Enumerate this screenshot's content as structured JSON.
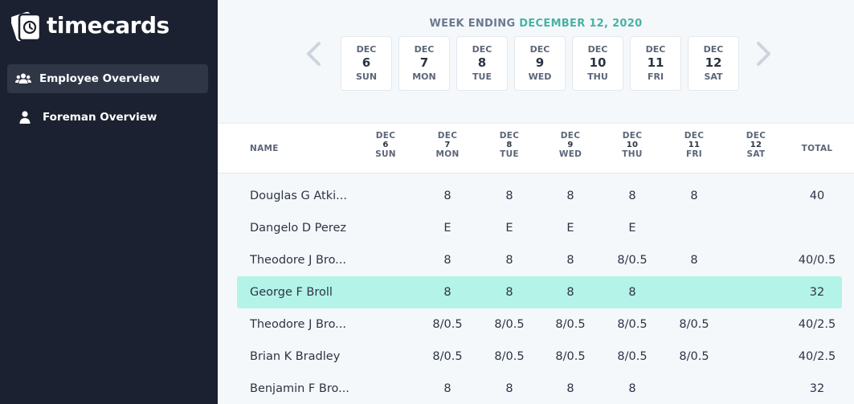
{
  "app": {
    "name": "timecards"
  },
  "nav": [
    {
      "label": "Employee Overview",
      "icon": "users-icon",
      "active": true
    },
    {
      "label": "Foreman Overview",
      "icon": "user-icon",
      "active": false
    }
  ],
  "week": {
    "title_prefix": "WEEK ENDING",
    "title_date": "DECEMBER 12, 2020",
    "days": [
      {
        "month": "DEC",
        "day": "6",
        "weekday": "SUN"
      },
      {
        "month": "DEC",
        "day": "7",
        "weekday": "MON"
      },
      {
        "month": "DEC",
        "day": "8",
        "weekday": "TUE"
      },
      {
        "month": "DEC",
        "day": "9",
        "weekday": "WED"
      },
      {
        "month": "DEC",
        "day": "10",
        "weekday": "THU"
      },
      {
        "month": "DEC",
        "day": "11",
        "weekday": "FRI"
      },
      {
        "month": "DEC",
        "day": "12",
        "weekday": "SAT"
      }
    ]
  },
  "table": {
    "name_header": "NAME",
    "total_header": "TOTAL",
    "rows": [
      {
        "name": "Douglas G Atki...",
        "hours": [
          "",
          "8",
          "8",
          "8",
          "8",
          "8",
          ""
        ],
        "total": "40",
        "highlight": false
      },
      {
        "name": "Dangelo D Perez",
        "hours": [
          "",
          "E",
          "E",
          "E",
          "E",
          "",
          ""
        ],
        "total": "",
        "highlight": false
      },
      {
        "name": "Theodore J Bro...",
        "hours": [
          "",
          "8",
          "8",
          "8",
          "8/0.5",
          "8",
          ""
        ],
        "total": "40/0.5",
        "highlight": false
      },
      {
        "name": "George F Broll",
        "hours": [
          "",
          "8",
          "8",
          "8",
          "8",
          "",
          ""
        ],
        "total": "32",
        "highlight": true
      },
      {
        "name": "Theodore J Bro...",
        "hours": [
          "",
          "8/0.5",
          "8/0.5",
          "8/0.5",
          "8/0.5",
          "8/0.5",
          ""
        ],
        "total": "40/2.5",
        "highlight": false
      },
      {
        "name": "Brian K Bradley",
        "hours": [
          "",
          "8/0.5",
          "8/0.5",
          "8/0.5",
          "8/0.5",
          "8/0.5",
          ""
        ],
        "total": "40/2.5",
        "highlight": false
      },
      {
        "name": "Benjamin F Bro...",
        "hours": [
          "",
          "8",
          "8",
          "8",
          "8",
          "",
          ""
        ],
        "total": "32",
        "highlight": false
      }
    ]
  },
  "colors": {
    "sidebar": "#1b2130",
    "accent": "#48b2a3",
    "highlight": "#b3f3e8"
  }
}
